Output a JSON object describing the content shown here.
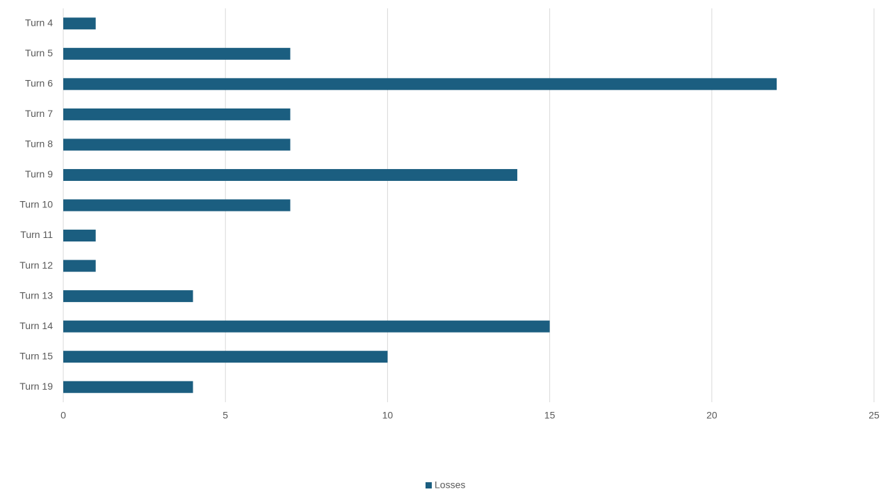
{
  "chart_data": {
    "type": "bar",
    "orientation": "horizontal",
    "categories": [
      "Turn 4",
      "Turn 5",
      "Turn 6",
      "Turn 7",
      "Turn 8",
      "Turn 9",
      "Turn 10",
      "Turn 11",
      "Turn 12",
      "Turn 13",
      "Turn 14",
      "Turn 15",
      "Turn 19"
    ],
    "series": [
      {
        "name": "Losses",
        "color": "#1b5e80",
        "values": [
          1,
          7,
          22,
          7,
          7,
          14,
          7,
          1,
          1,
          4,
          15,
          10,
          4
        ]
      }
    ],
    "xlim": [
      0,
      25
    ],
    "xticks": [
      0,
      5,
      10,
      15,
      20,
      25
    ],
    "grid": true,
    "legend": "bottom"
  }
}
